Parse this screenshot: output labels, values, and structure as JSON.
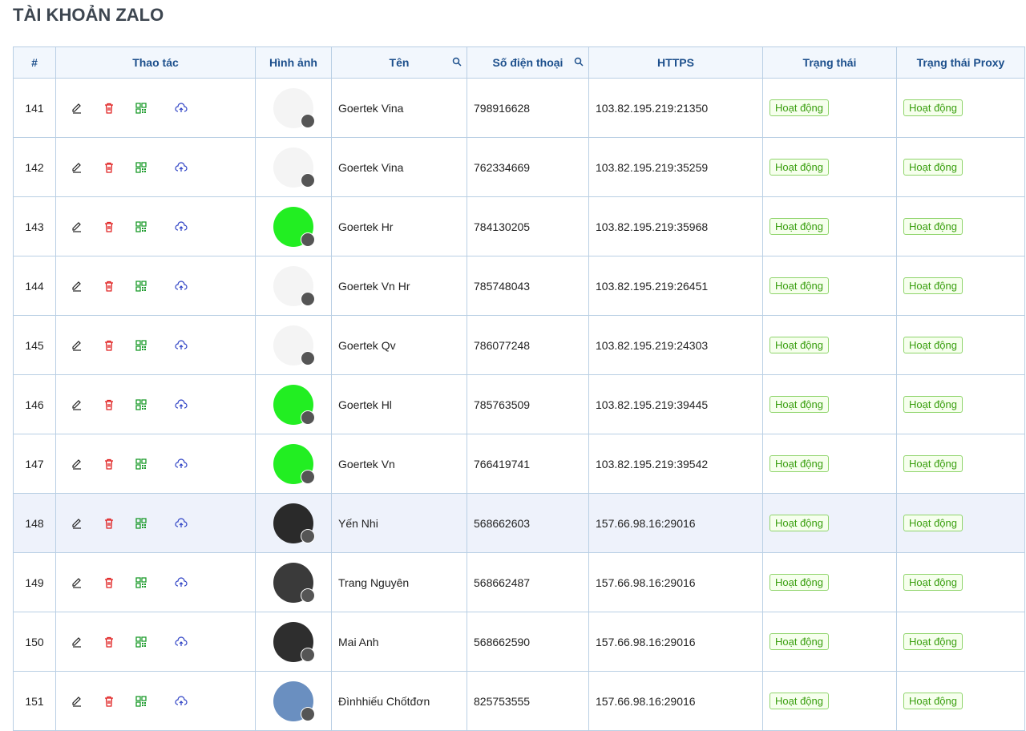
{
  "header": {
    "title": "TÀI KHOẢN ZALO"
  },
  "table": {
    "columns": [
      "#",
      "Thao tác",
      "Hình ảnh",
      "Tên",
      "Số điện thoại",
      "HTTPS",
      "Trạng thái",
      "Trạng thái Proxy"
    ],
    "rows": [
      [
        141,
        "Goertek Vina",
        "798916628",
        "103.82.195.219:21350",
        "Hoạt động",
        "Hoạt động"
      ],
      [
        142,
        "Goertek Vina",
        "762334669",
        "103.82.195.219:35259",
        "Hoạt động",
        "Hoạt động"
      ],
      [
        143,
        "Goertek Hr",
        "784130205",
        "103.82.195.219:35968",
        "Hoạt động",
        "Hoạt động"
      ],
      [
        144,
        "Goertek Vn Hr",
        "785748043",
        "103.82.195.219:26451",
        "Hoạt động",
        "Hoạt động"
      ],
      [
        145,
        "Goertek Qv",
        "786077248",
        "103.82.195.219:24303",
        "Hoạt động",
        "Hoạt động"
      ],
      [
        146,
        "Goertek Hl",
        "785763509",
        "103.82.195.219:39445",
        "Hoạt động",
        "Hoạt động"
      ],
      [
        147,
        "Goertek Vn",
        "766419741",
        "103.82.195.219:39542",
        "Hoạt động",
        "Hoạt động"
      ],
      [
        148,
        "Yến Nhi",
        "568662603",
        "157.66.98.16:29016",
        "Hoạt động",
        "Hoạt động"
      ],
      [
        149,
        "Trang Nguyên",
        "568662487",
        "157.66.98.16:29016",
        "Hoạt động",
        "Hoạt động"
      ],
      [
        150,
        "Mai Anh",
        "568662590",
        "157.66.98.16:29016",
        "Hoạt động",
        "Hoạt động"
      ],
      [
        151,
        "Đìnhhiếu Chốtđơn",
        "825753555",
        "157.66.98.16:29016",
        "Hoạt động",
        "Hoạt động"
      ]
    ]
  }
}
